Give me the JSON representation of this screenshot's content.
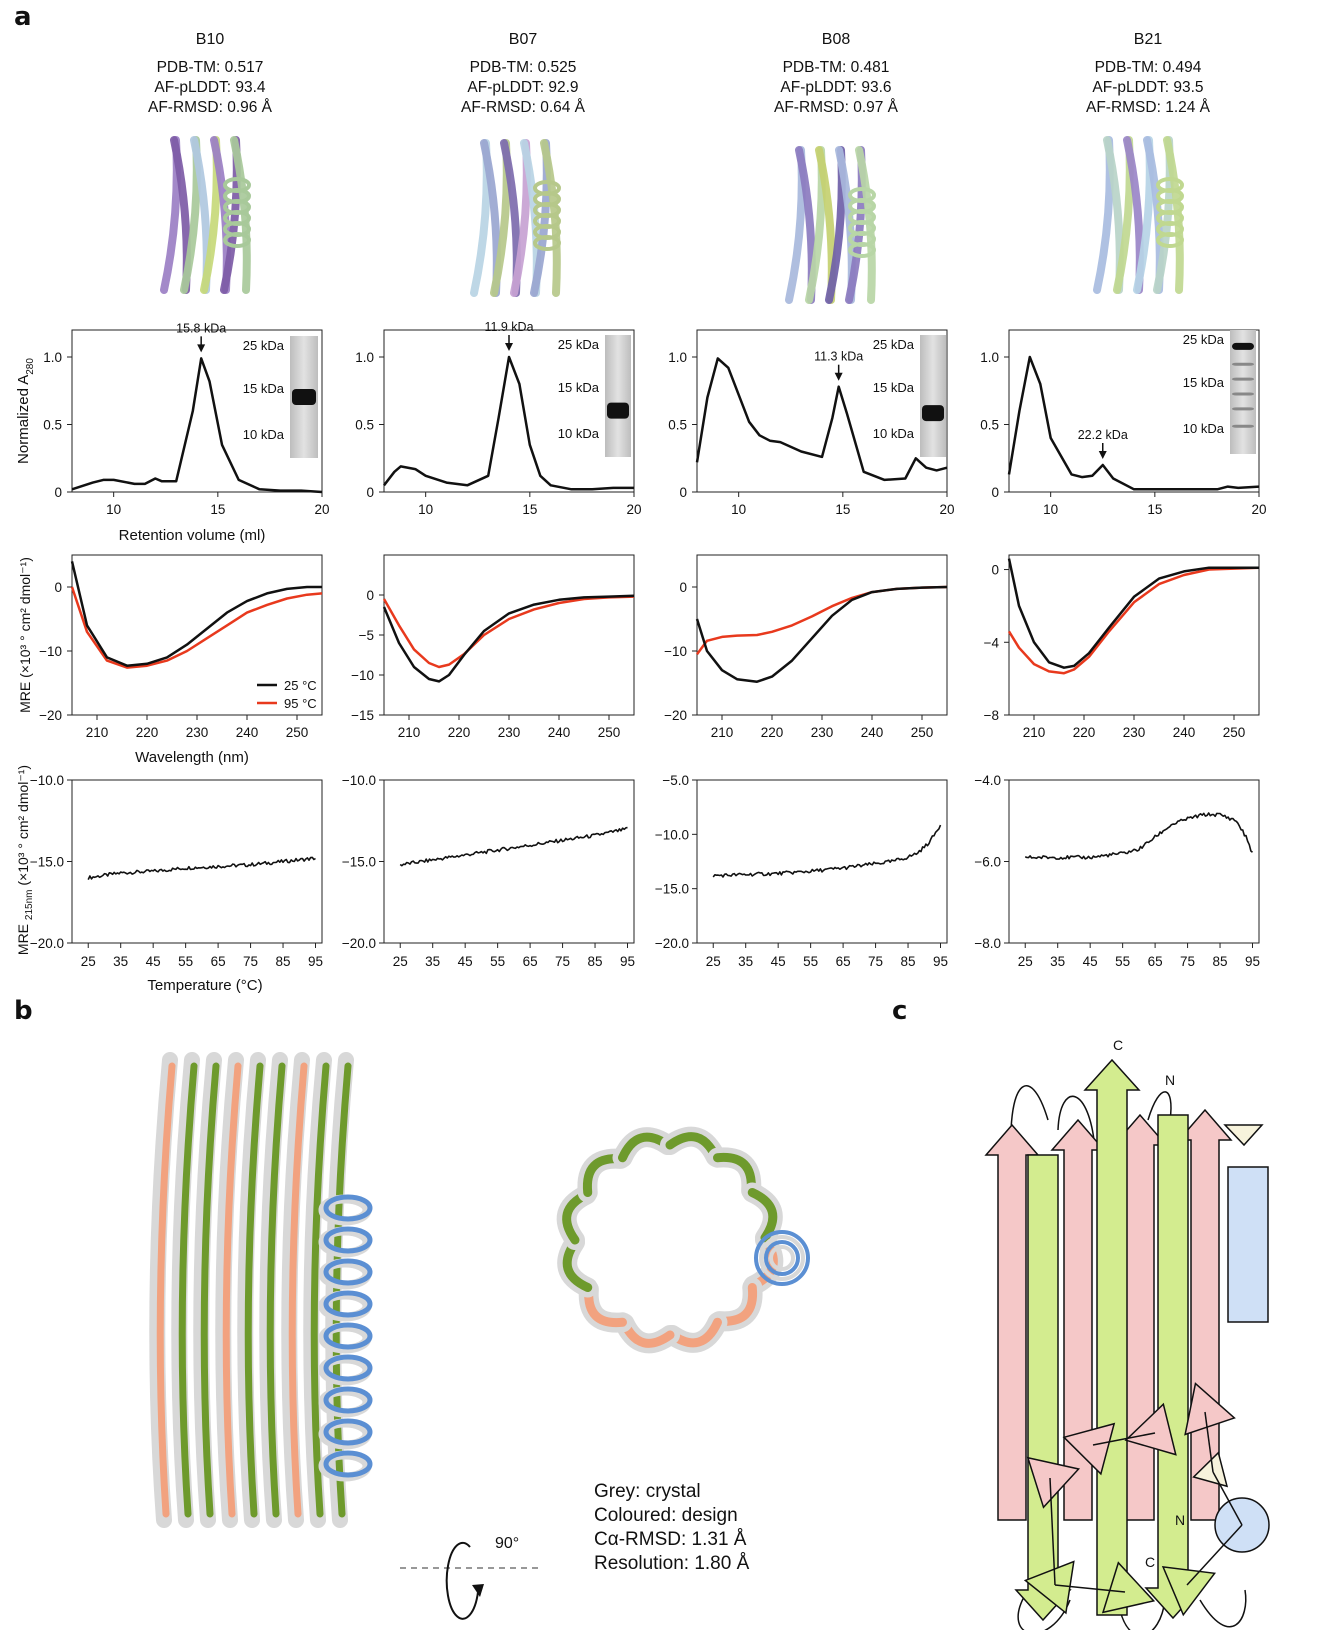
{
  "panels": {
    "a": "a",
    "b": "b",
    "c": "c"
  },
  "designs": [
    {
      "name": "B10",
      "pdb_tm": "PDB-TM: 0.517",
      "plddt": "AF-pLDDT: 93.4",
      "rmsd": "AF-RMSD: 0.96 Å",
      "palette": [
        "#9b7fc4",
        "#7d5ba6",
        "#a8c99a",
        "#b0c8e0",
        "#c7d97a"
      ]
    },
    {
      "name": "B07",
      "pdb_tm": "PDB-TM: 0.525",
      "plddt": "AF-pLDDT: 92.9",
      "rmsd": "AF-RMSD: 0.64 Å",
      "palette": [
        "#b8d4e4",
        "#9aa6d0",
        "#b6c88a",
        "#7d6bae",
        "#c7a2d2"
      ]
    },
    {
      "name": "B08",
      "pdb_tm": "PDB-TM: 0.481",
      "plddt": "AF-pLDDT: 93.6",
      "rmsd": "AF-RMSD: 0.97 Å",
      "palette": [
        "#a8b8dc",
        "#8b7bbf",
        "#b8d6a6",
        "#c4d070",
        "#6f5fa8"
      ]
    },
    {
      "name": "B21",
      "pdb_tm": "PDB-TM: 0.494",
      "plddt": "AF-pLDDT: 93.5",
      "rmsd": "AF-RMSD: 1.24 Å",
      "palette": [
        "#a8bce0",
        "#b8d4c8",
        "#c0d890",
        "#9a86c8",
        "#b6d4e6"
      ]
    }
  ],
  "sec_axis": {
    "ylabel": "Normalized A280",
    "xlabel": "Retention volume (ml)",
    "xticks": [
      "10",
      "15",
      "20"
    ],
    "yticks": [
      "0",
      "0.5",
      "1.0"
    ]
  },
  "gel_labels": [
    "25 kDa",
    "15 kDa",
    "10 kDa"
  ],
  "cd_axis": {
    "ylabel": "MRE (×10³ ° cm² dmol⁻¹)",
    "xlabel": "Wavelength (nm)",
    "xticks": [
      "210",
      "220",
      "230",
      "240",
      "250"
    ]
  },
  "cd_legend": [
    {
      "label": "25 °C",
      "color": "#111111"
    },
    {
      "label": "95 °C",
      "color": "#e8391d"
    }
  ],
  "melt_axis": {
    "ylabel": "MRE 215nm (×10³ ° cm² dmol⁻¹)",
    "xlabel": "Temperature (°C)",
    "xticks": [
      "25",
      "35",
      "45",
      "55",
      "65",
      "75",
      "85",
      "95"
    ]
  },
  "chart_data": [
    {
      "type": "line",
      "panel": "B10 SEC",
      "x": [
        8,
        9,
        9.5,
        10,
        11,
        11.5,
        12,
        12.3,
        13,
        13.8,
        14.2,
        14.6,
        15.2,
        16,
        17,
        18,
        19,
        20
      ],
      "y": [
        0.02,
        0.07,
        0.09,
        0.09,
        0.06,
        0.06,
        0.1,
        0.08,
        0.08,
        0.6,
        0.99,
        0.82,
        0.35,
        0.09,
        0.02,
        0.01,
        0.01,
        0.0
      ],
      "peak_label": "15.8 kDa",
      "xlim": [
        8,
        20
      ],
      "ylim": [
        0,
        1.2
      ]
    },
    {
      "type": "line",
      "panel": "B07 SEC",
      "x": [
        8,
        8.5,
        8.8,
        9.5,
        10,
        11,
        12,
        13,
        13.5,
        14,
        14.5,
        15,
        15.5,
        16,
        17,
        18,
        19,
        20
      ],
      "y": [
        0.05,
        0.15,
        0.19,
        0.17,
        0.12,
        0.07,
        0.05,
        0.12,
        0.55,
        1.0,
        0.8,
        0.35,
        0.12,
        0.05,
        0.02,
        0.02,
        0.03,
        0.03
      ],
      "peak_label": "11.9 kDa",
      "xlim": [
        8,
        20
      ],
      "ylim": [
        0,
        1.2
      ]
    },
    {
      "type": "line",
      "panel": "B08 SEC",
      "x": [
        8,
        8.5,
        9,
        9.5,
        10,
        10.5,
        11,
        11.5,
        12,
        13,
        14,
        14.5,
        14.8,
        15.2,
        16,
        17,
        18,
        18.5,
        19,
        19.5,
        20
      ],
      "y": [
        0.22,
        0.7,
        0.99,
        0.92,
        0.72,
        0.52,
        0.42,
        0.38,
        0.37,
        0.3,
        0.26,
        0.55,
        0.78,
        0.58,
        0.15,
        0.09,
        0.1,
        0.25,
        0.18,
        0.16,
        0.18
      ],
      "peak_label": "11.3 kDa",
      "xlim": [
        8,
        20
      ],
      "ylim": [
        0,
        1.2
      ]
    },
    {
      "type": "line",
      "panel": "B21 SEC",
      "x": [
        8,
        8.5,
        9,
        9.5,
        10,
        11,
        11.5,
        12,
        12.5,
        13,
        14,
        16,
        17,
        18,
        18.5,
        19,
        20
      ],
      "y": [
        0.13,
        0.6,
        1.0,
        0.8,
        0.4,
        0.13,
        0.11,
        0.12,
        0.2,
        0.1,
        0.02,
        0.02,
        0.02,
        0.02,
        0.04,
        0.03,
        0.04
      ],
      "peak_label": "22.2 kDa",
      "xlim": [
        8,
        20
      ],
      "ylim": [
        0,
        1.2
      ]
    },
    {
      "type": "line",
      "panel": "B10 CD",
      "xlim": [
        205,
        255
      ],
      "ylim": [
        -20,
        5
      ],
      "yticks": [
        0,
        -10,
        -20
      ],
      "series": [
        {
          "name": "25 °C",
          "x": [
            205,
            208,
            212,
            216,
            220,
            224,
            228,
            232,
            236,
            240,
            244,
            248,
            252,
            255
          ],
          "y": [
            4,
            -6,
            -11,
            -12.3,
            -12,
            -11,
            -9,
            -6.5,
            -4,
            -2.2,
            -1,
            -0.3,
            0,
            0
          ]
        },
        {
          "name": "95 °C",
          "x": [
            205,
            208,
            212,
            216,
            220,
            224,
            228,
            232,
            236,
            240,
            244,
            248,
            252,
            255
          ],
          "y": [
            0,
            -7,
            -11.5,
            -12.6,
            -12.3,
            -11.5,
            -10,
            -8,
            -6,
            -4,
            -2.8,
            -1.8,
            -1.2,
            -1
          ]
        }
      ]
    },
    {
      "type": "line",
      "panel": "B07 CD",
      "xlim": [
        205,
        255
      ],
      "ylim": [
        -15,
        5
      ],
      "yticks": [
        0,
        -5,
        -10,
        -15
      ],
      "series": [
        {
          "name": "25 °C",
          "x": [
            205,
            208,
            211,
            214,
            216,
            218,
            221,
            225,
            230,
            235,
            240,
            245,
            250,
            255
          ],
          "y": [
            -1.5,
            -6,
            -9,
            -10.5,
            -10.8,
            -10,
            -7.5,
            -4.5,
            -2.3,
            -1.2,
            -0.6,
            -0.3,
            -0.2,
            -0.1
          ]
        },
        {
          "name": "95 °C",
          "x": [
            205,
            208,
            211,
            214,
            216,
            218,
            221,
            225,
            230,
            235,
            240,
            245,
            250,
            255
          ],
          "y": [
            -0.5,
            -3.8,
            -6.8,
            -8.5,
            -9,
            -8.7,
            -7.4,
            -5,
            -3,
            -1.8,
            -1,
            -0.5,
            -0.3,
            -0.2
          ]
        }
      ]
    },
    {
      "type": "line",
      "panel": "B08 CD",
      "xlim": [
        205,
        255
      ],
      "ylim": [
        -20,
        5
      ],
      "yticks": [
        0,
        -10,
        -20
      ],
      "series": [
        {
          "name": "25 °C",
          "x": [
            205,
            207,
            210,
            213,
            217,
            220,
            224,
            228,
            232,
            236,
            240,
            245,
            250,
            255
          ],
          "y": [
            -5,
            -10,
            -13,
            -14.4,
            -14.8,
            -14,
            -11.5,
            -8,
            -4.5,
            -2,
            -0.8,
            -0.3,
            -0.1,
            0
          ]
        },
        {
          "name": "95 °C",
          "x": [
            205,
            207,
            210,
            213,
            217,
            220,
            224,
            228,
            232,
            236,
            240,
            245,
            250,
            255
          ],
          "y": [
            -10.5,
            -8.4,
            -7.8,
            -7.6,
            -7.5,
            -7,
            -6,
            -4.6,
            -3,
            -1.7,
            -0.8,
            -0.3,
            -0.1,
            0
          ]
        }
      ]
    },
    {
      "type": "line",
      "panel": "B21 CD",
      "xlim": [
        205,
        255
      ],
      "ylim": [
        -8,
        0.8
      ],
      "yticks": [
        0,
        -4,
        -8
      ],
      "series": [
        {
          "name": "25 °C",
          "x": [
            205,
            207,
            210,
            213,
            216,
            218,
            221,
            225,
            230,
            235,
            240,
            245,
            250,
            255
          ],
          "y": [
            0.6,
            -2,
            -4,
            -5.1,
            -5.4,
            -5.3,
            -4.6,
            -3.2,
            -1.5,
            -0.5,
            -0.1,
            0.1,
            0.1,
            0.1
          ]
        },
        {
          "name": "95 °C",
          "x": [
            205,
            207,
            210,
            213,
            216,
            218,
            221,
            225,
            230,
            235,
            240,
            245,
            250,
            255
          ],
          "y": [
            -3.4,
            -4.3,
            -5.2,
            -5.6,
            -5.7,
            -5.5,
            -4.8,
            -3.4,
            -1.8,
            -0.8,
            -0.3,
            0,
            0.05,
            0.1
          ]
        }
      ]
    },
    {
      "type": "line",
      "panel": "B10 melt",
      "xlim": [
        20,
        97
      ],
      "ylim": [
        -20,
        -10
      ],
      "yticks": [
        "-10.0",
        "-15.0",
        "-20.0"
      ],
      "x": [
        25,
        35,
        45,
        55,
        65,
        75,
        85,
        95
      ],
      "y": [
        -16.0,
        -15.7,
        -15.6,
        -15.4,
        -15.3,
        -15.2,
        -15.0,
        -14.8
      ]
    },
    {
      "type": "line",
      "panel": "B07 melt",
      "xlim": [
        20,
        97
      ],
      "ylim": [
        -20,
        -10
      ],
      "yticks": [
        "-10.0",
        "-15.0",
        "-20.0"
      ],
      "x": [
        25,
        35,
        45,
        55,
        65,
        75,
        85,
        95
      ],
      "y": [
        -15.2,
        -14.9,
        -14.6,
        -14.3,
        -14.0,
        -13.7,
        -13.4,
        -13.0
      ]
    },
    {
      "type": "line",
      "panel": "B08 melt",
      "xlim": [
        20,
        97
      ],
      "ylim": [
        -20,
        -5
      ],
      "yticks": [
        "-5.0",
        "-10.0",
        "-15.0",
        "-20.0"
      ],
      "x": [
        25,
        35,
        45,
        55,
        65,
        75,
        80,
        85,
        88,
        91,
        93,
        95
      ],
      "y": [
        -13.8,
        -13.7,
        -13.6,
        -13.4,
        -13.1,
        -12.7,
        -12.5,
        -12.1,
        -11.7,
        -10.9,
        -10.1,
        -9.1
      ]
    },
    {
      "type": "line",
      "panel": "B21 melt",
      "xlim": [
        20,
        97
      ],
      "ylim": [
        -8,
        -4
      ],
      "yticks": [
        "-4.0",
        "-6.0",
        "-8.0"
      ],
      "x": [
        25,
        35,
        45,
        55,
        60,
        65,
        70,
        75,
        80,
        85,
        90,
        93,
        95
      ],
      "y": [
        -5.9,
        -5.9,
        -5.9,
        -5.8,
        -5.7,
        -5.4,
        -5.1,
        -4.95,
        -4.85,
        -4.85,
        -5.0,
        -5.4,
        -5.8
      ]
    }
  ],
  "rotation_label": "90°",
  "crystal_legend": [
    "Grey: crystal",
    "Coloured: design",
    "Cα-RMSD: 1.31 Å",
    "Resolution: 1.80 Å"
  ],
  "topology": {
    "c_label": "C",
    "n_label": "N",
    "colors": {
      "strand_a": "#f5c8c8",
      "strand_b": "#d3ec8f",
      "helix": "#cfe0f6",
      "small": "#f7f3dc"
    }
  },
  "structure_colors": {
    "crystal": "#d8d8d8",
    "sheet": "#6e9a2c",
    "salmon": "#f2a27f",
    "helix": "#5b8fd3"
  }
}
